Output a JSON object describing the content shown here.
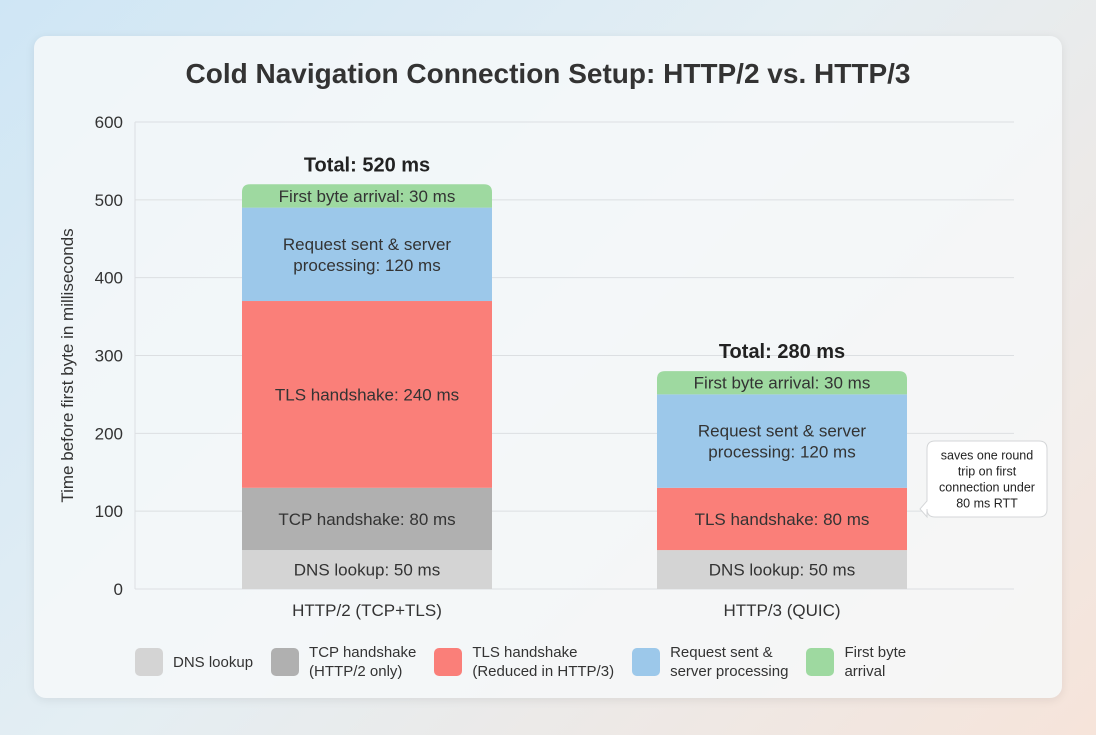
{
  "chart_data": {
    "type": "bar",
    "stacked": true,
    "title": "Cold Navigation Connection Setup: HTTP/2 vs. HTTP/3",
    "ylabel": "Time before first byte in milliseconds",
    "xlabel": "",
    "ylim": [
      0,
      600
    ],
    "yticks": [
      0,
      100,
      200,
      300,
      400,
      500,
      600
    ],
    "grid": true,
    "legend_position": "bottom",
    "categories": [
      "HTTP/2 (TCP+TLS)",
      "HTTP/3 (QUIC)"
    ],
    "totals": [
      "Total: 520 ms",
      "Total: 280 ms"
    ],
    "series": [
      {
        "name": "DNS lookup",
        "color": "#d4d4d4",
        "values": [
          50,
          50
        ],
        "labels": [
          "DNS lookup: 50 ms",
          "DNS lookup: 50 ms"
        ]
      },
      {
        "name": "TCP handshake (HTTP/2 only)",
        "color": "#b0b0b0",
        "values": [
          80,
          0
        ],
        "labels": [
          "TCP handshake: 80 ms",
          ""
        ]
      },
      {
        "name": "TLS handshake (Reduced in HTTP/3)",
        "color": "#fa7f79",
        "values": [
          240,
          80
        ],
        "labels": [
          "TLS handshake: 240 ms",
          "TLS handshake: 80 ms"
        ]
      },
      {
        "name": "Request sent & server processing",
        "color": "#9cc8ea",
        "values": [
          120,
          120
        ],
        "labels": [
          "Request sent & server\nprocessing: 120 ms",
          "Request sent & server\nprocessing: 120 ms"
        ]
      },
      {
        "name": "First byte arrival",
        "color": "#9ed9a0",
        "values": [
          30,
          30
        ],
        "labels": [
          "First byte arrival: 30 ms",
          "First byte arrival: 30 ms"
        ]
      }
    ],
    "annotations": [
      {
        "text": "saves one round\ntrip on first\nconnection under\n80 ms RTT",
        "category": 1,
        "series": 2
      }
    ]
  },
  "legend": [
    {
      "label": "DNS lookup",
      "color": "#d4d4d4"
    },
    {
      "label": "TCP handshake\n(HTTP/2 only)",
      "color": "#b0b0b0"
    },
    {
      "label": "TLS handshake\n(Reduced in HTTP/3)",
      "color": "#fa7f79"
    },
    {
      "label": "Request sent &\nserver processing",
      "color": "#9cc8ea"
    },
    {
      "label": "First byte\narrival",
      "color": "#9ed9a0"
    }
  ]
}
